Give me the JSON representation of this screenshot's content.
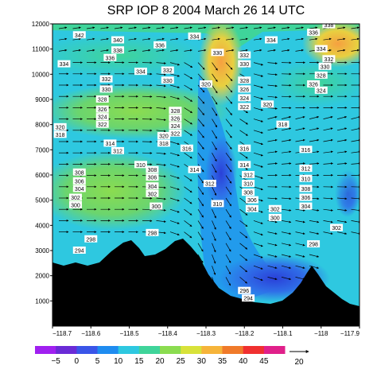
{
  "chart_data": {
    "type": "heatmap",
    "title": "SRP IOP 8 2004 March 26 14 UTC",
    "xlabel": "",
    "ylabel": "",
    "x_ticks": [
      "-118.7",
      "-118.6",
      "-118.5",
      "-118.4",
      "-118.3",
      "-118.2",
      "-118.1",
      "-118",
      "-117.9"
    ],
    "y_ticks": [
      "1000",
      "2000",
      "3000",
      "4000",
      "5000",
      "6000",
      "7000",
      "8000",
      "9000",
      "10000",
      "11000",
      "12000"
    ],
    "xlim": [
      -118.7,
      -117.9
    ],
    "ylim": [
      0,
      12000
    ],
    "colorbar": {
      "labels": [
        "-5",
        "0",
        "5",
        "10",
        "15",
        "20",
        "25",
        "30",
        "35",
        "40",
        "45"
      ],
      "colors": [
        "#a020f0",
        "#6a2bd6",
        "#3a55e8",
        "#1f8cf0",
        "#2ec8e0",
        "#3fd49a",
        "#8bdc50",
        "#d8e23a",
        "#f6b43a",
        "#f07a2a",
        "#f03030",
        "#e0208a"
      ]
    },
    "vector_reference": "20",
    "theta_labels": [
      {
        "lon": -118.63,
        "z": 11550,
        "text": "342"
      },
      {
        "lon": -118.53,
        "z": 11350,
        "text": "340"
      },
      {
        "lon": -118.53,
        "z": 10950,
        "text": "338"
      },
      {
        "lon": -118.42,
        "z": 11150,
        "text": "336"
      },
      {
        "lon": -118.55,
        "z": 10650,
        "text": "336"
      },
      {
        "lon": -118.67,
        "z": 10400,
        "text": "334"
      },
      {
        "lon": -118.47,
        "z": 10100,
        "text": "334"
      },
      {
        "lon": -118.4,
        "z": 10150,
        "text": "332"
      },
      {
        "lon": -118.56,
        "z": 9800,
        "text": "332"
      },
      {
        "lon": -118.56,
        "z": 9400,
        "text": "330"
      },
      {
        "lon": -118.4,
        "z": 9750,
        "text": "330"
      },
      {
        "lon": -118.57,
        "z": 9000,
        "text": "328"
      },
      {
        "lon": -118.57,
        "z": 8600,
        "text": "326"
      },
      {
        "lon": -118.57,
        "z": 8300,
        "text": "324"
      },
      {
        "lon": -118.57,
        "z": 8000,
        "text": "322"
      },
      {
        "lon": -118.68,
        "z": 7900,
        "text": "320"
      },
      {
        "lon": -118.68,
        "z": 7600,
        "text": "318"
      },
      {
        "lon": -118.41,
        "z": 7550,
        "text": "320"
      },
      {
        "lon": -118.41,
        "z": 7250,
        "text": "318"
      },
      {
        "lon": -118.38,
        "z": 8550,
        "text": "328"
      },
      {
        "lon": -118.38,
        "z": 8250,
        "text": "326"
      },
      {
        "lon": -118.38,
        "z": 7950,
        "text": "324"
      },
      {
        "lon": -118.38,
        "z": 7650,
        "text": "322"
      },
      {
        "lon": -118.33,
        "z": 11500,
        "text": "334"
      },
      {
        "lon": -118.27,
        "z": 10850,
        "text": "330"
      },
      {
        "lon": -118.2,
        "z": 10750,
        "text": "332"
      },
      {
        "lon": -118.2,
        "z": 10400,
        "text": "330"
      },
      {
        "lon": -118.3,
        "z": 9600,
        "text": "320"
      },
      {
        "lon": -118.2,
        "z": 9750,
        "text": "328"
      },
      {
        "lon": -118.2,
        "z": 9400,
        "text": "326"
      },
      {
        "lon": -118.2,
        "z": 9050,
        "text": "324"
      },
      {
        "lon": -118.2,
        "z": 8700,
        "text": "322"
      },
      {
        "lon": -118.14,
        "z": 8800,
        "text": "320"
      },
      {
        "lon": -118.1,
        "z": 8000,
        "text": "318"
      },
      {
        "lon": -118.13,
        "z": 11350,
        "text": "334"
      },
      {
        "lon": -118.02,
        "z": 11650,
        "text": "336"
      },
      {
        "lon": -117.98,
        "z": 11950,
        "text": "338"
      },
      {
        "lon": -118.0,
        "z": 11000,
        "text": "334"
      },
      {
        "lon": -117.98,
        "z": 10600,
        "text": "332"
      },
      {
        "lon": -117.99,
        "z": 10300,
        "text": "330"
      },
      {
        "lon": -118.0,
        "z": 9950,
        "text": "328"
      },
      {
        "lon": -118.02,
        "z": 9600,
        "text": "326"
      },
      {
        "lon": -118.0,
        "z": 9350,
        "text": "324"
      },
      {
        "lon": -118.55,
        "z": 7250,
        "text": "314"
      },
      {
        "lon": -118.53,
        "z": 6950,
        "text": "312"
      },
      {
        "lon": -118.35,
        "z": 7050,
        "text": "316"
      },
      {
        "lon": -118.2,
        "z": 7050,
        "text": "316"
      },
      {
        "lon": -118.04,
        "z": 7000,
        "text": "316"
      },
      {
        "lon": -118.47,
        "z": 6400,
        "text": "310"
      },
      {
        "lon": -118.44,
        "z": 6200,
        "text": "308"
      },
      {
        "lon": -118.44,
        "z": 5900,
        "text": "306"
      },
      {
        "lon": -118.44,
        "z": 5550,
        "text": "304"
      },
      {
        "lon": -118.44,
        "z": 5250,
        "text": "302"
      },
      {
        "lon": -118.43,
        "z": 4750,
        "text": "300"
      },
      {
        "lon": -118.63,
        "z": 6100,
        "text": "308"
      },
      {
        "lon": -118.63,
        "z": 5750,
        "text": "306"
      },
      {
        "lon": -118.63,
        "z": 5450,
        "text": "304"
      },
      {
        "lon": -118.64,
        "z": 5100,
        "text": "302"
      },
      {
        "lon": -118.64,
        "z": 4800,
        "text": "300"
      },
      {
        "lon": -118.33,
        "z": 6200,
        "text": "314"
      },
      {
        "lon": -118.29,
        "z": 5650,
        "text": "312"
      },
      {
        "lon": -118.2,
        "z": 6400,
        "text": "314"
      },
      {
        "lon": -118.19,
        "z": 6000,
        "text": "312"
      },
      {
        "lon": -118.19,
        "z": 5650,
        "text": "310"
      },
      {
        "lon": -118.19,
        "z": 5300,
        "text": "308"
      },
      {
        "lon": -118.18,
        "z": 5000,
        "text": "306"
      },
      {
        "lon": -118.18,
        "z": 4650,
        "text": "304"
      },
      {
        "lon": -118.27,
        "z": 4850,
        "text": "310"
      },
      {
        "lon": -118.12,
        "z": 4650,
        "text": "302"
      },
      {
        "lon": -118.12,
        "z": 4300,
        "text": "300"
      },
      {
        "lon": -118.04,
        "z": 6250,
        "text": "312"
      },
      {
        "lon": -118.04,
        "z": 5850,
        "text": "310"
      },
      {
        "lon": -118.04,
        "z": 5450,
        "text": "308"
      },
      {
        "lon": -118.04,
        "z": 5100,
        "text": "306"
      },
      {
        "lon": -118.04,
        "z": 4750,
        "text": "304"
      },
      {
        "lon": -117.96,
        "z": 3900,
        "text": "302"
      },
      {
        "lon": -118.6,
        "z": 3450,
        "text": "298"
      },
      {
        "lon": -118.63,
        "z": 3000,
        "text": "294"
      },
      {
        "lon": -118.44,
        "z": 3700,
        "text": "298"
      },
      {
        "lon": -118.02,
        "z": 3250,
        "text": "298"
      },
      {
        "lon": -118.2,
        "z": 1400,
        "text": "296"
      },
      {
        "lon": -118.19,
        "z": 1100,
        "text": "294"
      }
    ]
  }
}
